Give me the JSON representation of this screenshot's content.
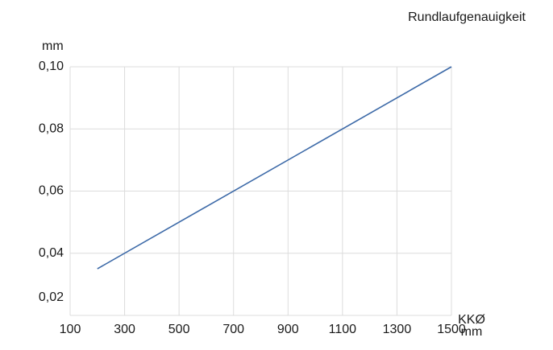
{
  "chart_data": {
    "type": "line",
    "title": "Rundlaufgenauigkeit",
    "y_label": "mm",
    "x_label": [
      "KKØ",
      "mm"
    ],
    "x": [
      200,
      1500
    ],
    "series": [
      {
        "name": "Rundlaufgenauigkeit",
        "color": "#3d6aa8",
        "values": [
          0.035,
          0.1
        ]
      }
    ],
    "xlim": [
      100,
      1500
    ],
    "ylim": [
      0.02,
      0.1
    ],
    "xticks": [
      100,
      300,
      500,
      700,
      900,
      1100,
      1300,
      1500
    ],
    "yticks": [
      {
        "value": 0.02,
        "label": "0,02"
      },
      {
        "value": 0.04,
        "label": "0,04"
      },
      {
        "value": 0.06,
        "label": "0,06"
      },
      {
        "value": 0.08,
        "label": "0,08"
      },
      {
        "value": 0.1,
        "label": "0,10"
      }
    ],
    "grid": true
  }
}
